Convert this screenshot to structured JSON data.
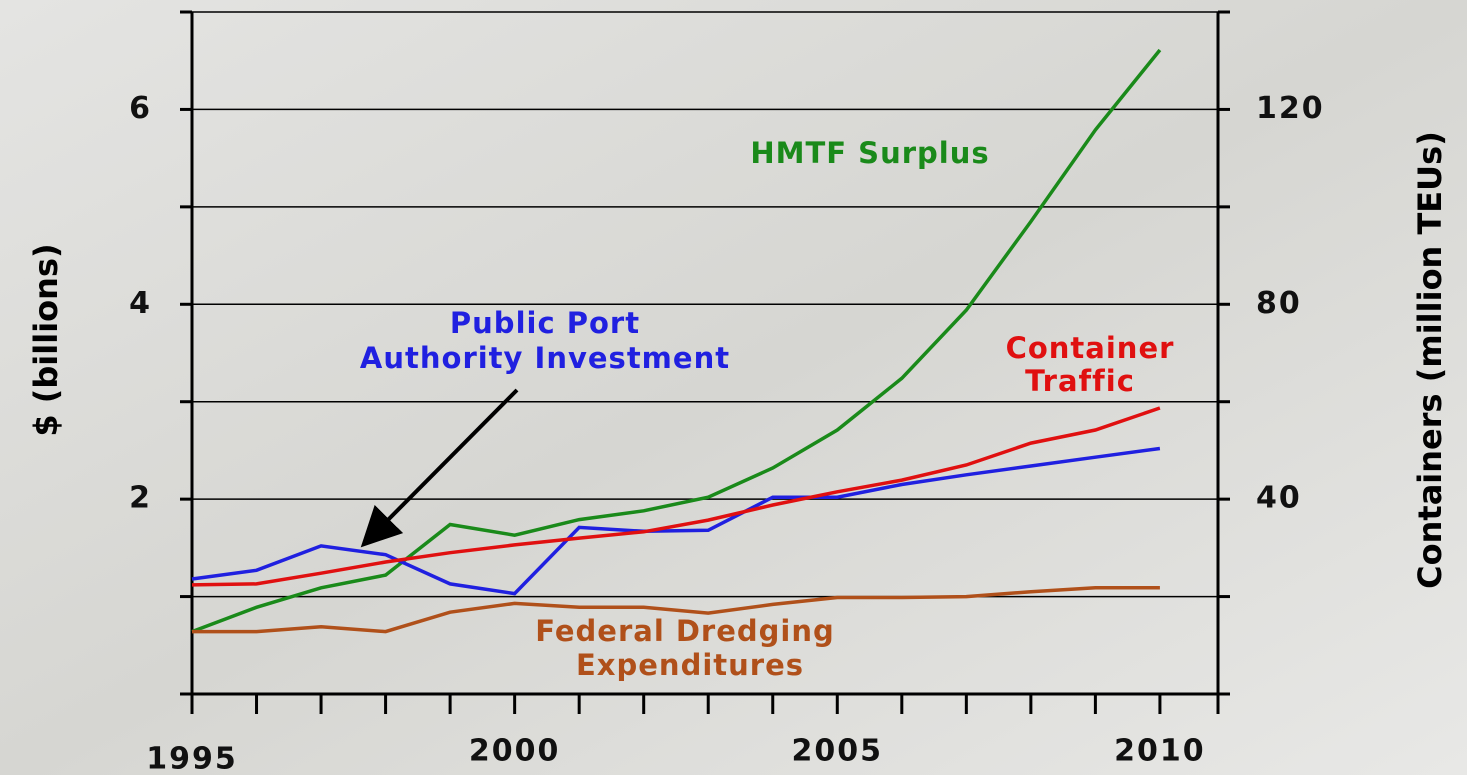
{
  "chart_data": {
    "type": "line",
    "ylabel": "$ (billions)",
    "y2label": "Containers (million TEUs)",
    "x": [
      1995,
      1996,
      1997,
      1998,
      1999,
      2000,
      2001,
      2002,
      2003,
      2004,
      2005,
      2006,
      2007,
      2008,
      2009,
      2010
    ],
    "xlim": [
      1995,
      2010.9
    ],
    "xticks": [
      1995,
      2000,
      2005,
      2010
    ],
    "minor_xticks": [
      1995,
      1996,
      1997,
      1998,
      1999,
      2000,
      2001,
      2002,
      2003,
      2004,
      2005,
      2006,
      2007,
      2008,
      2009,
      2010,
      2010.9
    ],
    "ylim": [
      0,
      7
    ],
    "yticks": [
      2,
      4,
      6
    ],
    "minor_yticks": [
      0,
      1,
      2,
      3,
      4,
      5,
      6,
      7
    ],
    "y2lim": [
      0,
      140
    ],
    "y2ticks": [
      40,
      80,
      120
    ],
    "grid": true,
    "series": [
      {
        "name": "HMTF Surplus",
        "color": "#1a8a1a",
        "values": [
          0.64,
          0.89,
          1.09,
          1.22,
          1.74,
          1.63,
          1.79,
          1.88,
          2.02,
          2.32,
          2.71,
          3.24,
          3.94,
          4.85,
          5.79,
          6.61
        ]
      },
      {
        "name": "Public Port Authority Investment",
        "color": "#2020e0",
        "values": [
          1.18,
          1.27,
          1.52,
          1.43,
          1.13,
          1.03,
          1.71,
          1.67,
          1.68,
          2.02,
          2.02,
          2.15,
          2.25,
          2.34,
          2.43,
          2.52
        ]
      },
      {
        "name": "Container Traffic",
        "color": "#e01010",
        "axis": "y2",
        "values": [
          22.4,
          22.6,
          24.8,
          27.1,
          29.0,
          30.6,
          32.0,
          33.3,
          35.7,
          38.8,
          41.5,
          43.9,
          47.0,
          51.5,
          54.2,
          58.7
        ]
      },
      {
        "name": "Federal Dredging Expenditures",
        "color": "#b0501a",
        "values": [
          0.64,
          0.64,
          0.69,
          0.64,
          0.84,
          0.93,
          0.89,
          0.89,
          0.83,
          0.92,
          0.99,
          0.99,
          1.0,
          1.05,
          1.09,
          1.09
        ]
      }
    ],
    "annotations": [
      {
        "text": "HMTF Surplus",
        "color": "#1a8a1a"
      },
      {
        "text": "Public Port",
        "color": "#2020e0"
      },
      {
        "text": "Authority Investment",
        "color": "#2020e0"
      },
      {
        "text": "Container",
        "color": "#e01010"
      },
      {
        "text": "Traffic",
        "color": "#e01010"
      },
      {
        "text": "Federal Dredging",
        "color": "#b0501a"
      },
      {
        "text": "Expenditures",
        "color": "#b0501a"
      }
    ]
  }
}
